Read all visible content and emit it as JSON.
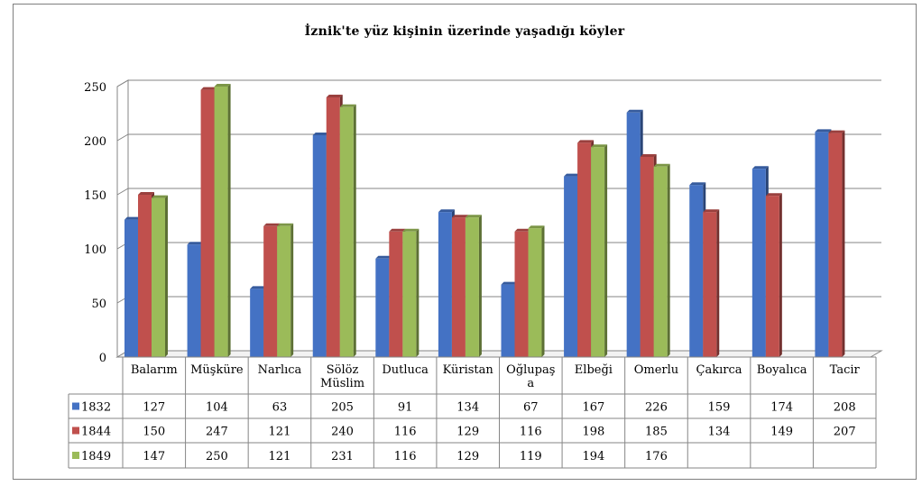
{
  "chart_data": {
    "type": "bar",
    "title": "İznik'te yüz kişinin üzerinde yaşadığı köyler",
    "categories": [
      "Balarım",
      "Müşküre",
      "Narlıca",
      "Sölöz Müslim",
      "Dutluca",
      "Küristan",
      "Oğlupaşa",
      "Elbeği",
      "Omerlu",
      "Çakırca",
      "Boyalıca",
      "Tacir"
    ],
    "category_display": [
      [
        "Balarım"
      ],
      [
        "Müşküre"
      ],
      [
        "Narlıca"
      ],
      [
        "Sölöz",
        "Müslim"
      ],
      [
        "Dutluca"
      ],
      [
        "Küristan"
      ],
      [
        "Oğlupaş",
        "a"
      ],
      [
        "Elbeği"
      ],
      [
        "Omerlu"
      ],
      [
        "Çakırca"
      ],
      [
        "Boyalıca"
      ],
      [
        "Tacir"
      ]
    ],
    "series": [
      {
        "name": "1832",
        "color": "#4472c4",
        "values": [
          127,
          104,
          63,
          205,
          91,
          134,
          67,
          167,
          226,
          159,
          174,
          208
        ]
      },
      {
        "name": "1844",
        "color": "#c0504d",
        "values": [
          150,
          247,
          121,
          240,
          116,
          129,
          116,
          198,
          185,
          134,
          149,
          207
        ]
      },
      {
        "name": "1849",
        "color": "#9bbb59",
        "values": [
          147,
          250,
          121,
          231,
          116,
          129,
          119,
          194,
          176,
          null,
          null,
          null
        ]
      }
    ],
    "ylim": [
      0,
      250
    ],
    "yticks": [
      0,
      50,
      100,
      150,
      200,
      250
    ],
    "grid": true,
    "legend": "data-table"
  }
}
